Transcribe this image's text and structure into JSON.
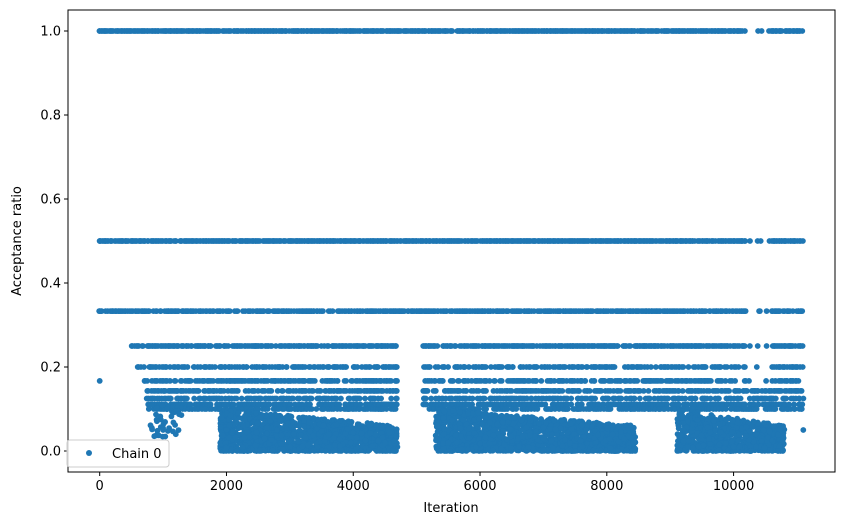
{
  "chart_data": {
    "type": "scatter",
    "xlabel": "Iteration",
    "ylabel": "Acceptance ratio",
    "xlim": [
      -500,
      11600
    ],
    "ylim": [
      -0.05,
      1.05
    ],
    "xticks": [
      0,
      2000,
      4000,
      6000,
      8000,
      10000
    ],
    "yticks": [
      0.0,
      0.2,
      0.4,
      0.6,
      0.8,
      1.0
    ],
    "xtick_labels": [
      "0",
      "2000",
      "4000",
      "6000",
      "8000",
      "10000"
    ],
    "ytick_labels": [
      "0.0",
      "0.2",
      "0.4",
      "0.6",
      "0.8",
      "1.0"
    ],
    "grid": false,
    "legend": {
      "position": "lower-left",
      "entries": [
        "Chain 0"
      ]
    },
    "color": "#1f77b4",
    "series": [
      {
        "name": "Chain 0",
        "levels": [
          1.0,
          0.5,
          0.333,
          0.25,
          0.2,
          0.167,
          0.143,
          0.125,
          0.111,
          0.1
        ],
        "iteration_range": [
          0,
          11100
        ],
        "dense_low_clusters": [
          {
            "x_range": [
              1900,
              4700
            ],
            "y_range": [
              0.0,
              0.1
            ]
          },
          {
            "x_range": [
              5300,
              8450
            ],
            "y_range": [
              0.0,
              0.1
            ]
          },
          {
            "x_range": [
              9100,
              10800
            ],
            "y_range": [
              0.0,
              0.1
            ]
          }
        ],
        "sample_points": [
          [
            0,
            1.0
          ],
          [
            0,
            0.5
          ],
          [
            0,
            0.333
          ],
          [
            0,
            0.167
          ],
          [
            1000,
            0.05
          ],
          [
            1200,
            0.04
          ],
          [
            2000,
            0.05
          ],
          [
            3000,
            0.01
          ],
          [
            4500,
            0.02
          ],
          [
            4650,
            0.0
          ],
          [
            7000,
            0.03
          ],
          [
            8400,
            0.0
          ],
          [
            10000,
            0.01
          ],
          [
            10700,
            0.0
          ],
          [
            11100,
            0.05
          ]
        ]
      }
    ]
  }
}
